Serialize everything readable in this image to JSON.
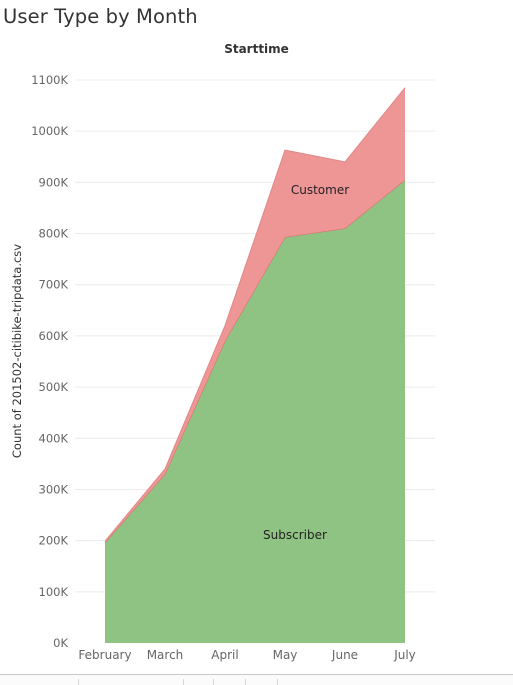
{
  "title": "User Type by Month",
  "chart_data": {
    "type": "area",
    "stacked": true,
    "header": "Starttime",
    "categories": [
      "February",
      "March",
      "April",
      "May",
      "June",
      "July"
    ],
    "series": [
      {
        "name": "Subscriber",
        "color": "#8fc383",
        "values": [
          196000,
          330000,
          590000,
          793000,
          810000,
          905000
        ]
      },
      {
        "name": "Customer",
        "color": "#ee9596",
        "values": [
          3000,
          10000,
          30000,
          170000,
          130000,
          180000
        ]
      }
    ],
    "ylabel": "Count of 201502-citibike-tripdata.csv",
    "ylim": [
      0,
      1100000
    ],
    "yticks": [
      0,
      100000,
      200000,
      300000,
      400000,
      500000,
      600000,
      700000,
      800000,
      900000,
      1000000,
      1100000
    ],
    "ytick_labels": [
      "0K",
      "100K",
      "200K",
      "300K",
      "400K",
      "500K",
      "600K",
      "700K",
      "800K",
      "900K",
      "1000K",
      "1100K"
    ],
    "grid": true
  }
}
